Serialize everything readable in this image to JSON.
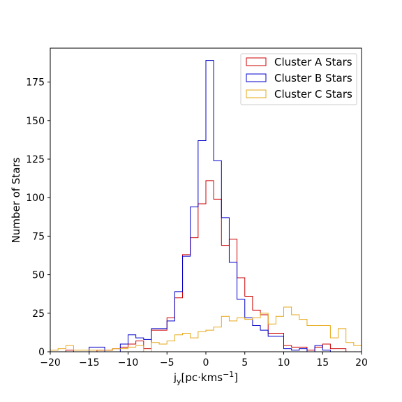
{
  "chart_data": {
    "type": "histogram",
    "title": "",
    "xlabel": "j",
    "xlabel_sub": "y",
    "xlabel_unit_open": "[pc·kms",
    "xlabel_unit_sup": "−1",
    "xlabel_unit_close": "]",
    "ylabel": "Number of Stars",
    "xlim": [
      -20,
      20
    ],
    "ylim": [
      0,
      197
    ],
    "xticks": [
      -20,
      -15,
      -10,
      -5,
      0,
      5,
      10,
      15,
      20
    ],
    "xtick_labels": [
      "−20",
      "−15",
      "−10",
      "−5",
      "0",
      "5",
      "10",
      "15",
      "20"
    ],
    "yticks": [
      0,
      25,
      50,
      75,
      100,
      125,
      150,
      175
    ],
    "ytick_labels": [
      "0",
      "25",
      "50",
      "75",
      "100",
      "125",
      "150",
      "175"
    ],
    "legend_position": "top-right",
    "bin_edges": [
      -20,
      -19,
      -18,
      -17,
      -16,
      -15,
      -14,
      -13,
      -12,
      -11,
      -10,
      -9,
      -8,
      -7,
      -6,
      -5,
      -4,
      -3,
      -2,
      -1,
      0,
      1,
      2,
      3,
      4,
      5,
      6,
      7,
      8,
      9,
      10,
      11,
      12,
      13,
      14,
      15,
      16,
      17,
      18,
      19,
      20
    ],
    "series": [
      {
        "name": "Cluster A Stars",
        "color": "#cc0000",
        "counts": [
          0,
          0,
          1,
          0,
          0,
          0,
          1,
          1,
          2,
          3,
          5,
          7,
          2,
          14,
          14,
          22,
          35,
          63,
          74,
          96,
          111,
          99,
          69,
          73,
          48,
          36,
          27,
          24,
          12,
          12,
          4,
          3,
          3,
          1,
          3,
          5,
          2,
          2,
          0,
          0
        ]
      },
      {
        "name": "Cluster B Stars",
        "color": "#0000cc",
        "counts": [
          0,
          0,
          0,
          0,
          0,
          3,
          3,
          0,
          0,
          5,
          11,
          9,
          8,
          15,
          15,
          20,
          39,
          62,
          94,
          137,
          189,
          124,
          87,
          58,
          34,
          22,
          17,
          14,
          10,
          10,
          2,
          1,
          2,
          0,
          4,
          1,
          0,
          0,
          0,
          0
        ]
      },
      {
        "name": "Cluster C Stars",
        "color": "#e6a817",
        "counts": [
          1,
          2,
          4,
          1,
          1,
          1,
          1,
          1,
          2,
          2,
          3,
          4,
          0,
          6,
          5,
          7,
          11,
          12,
          9,
          13,
          14,
          16,
          23,
          20,
          22,
          21,
          22,
          25,
          18,
          23,
          29,
          24,
          21,
          17,
          17,
          17,
          9,
          15,
          6,
          4
        ]
      }
    ],
    "last_bin_extra": {
      "series": "Cluster C Stars",
      "count": 8
    }
  }
}
